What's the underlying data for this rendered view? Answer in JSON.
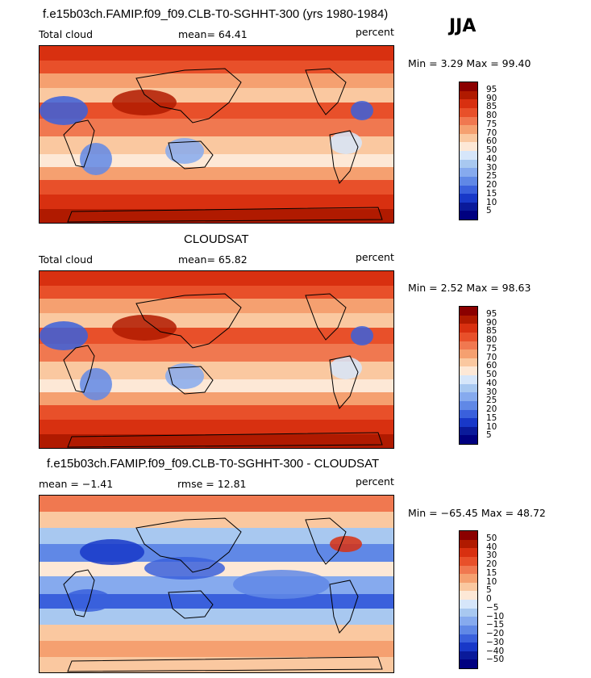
{
  "header": {
    "main_title": "f.e15b03ch.FAMIP.f09_f09.CLB-T0-SGHHT-300 (yrs 1980-1984)",
    "season": "JJA"
  },
  "panels": [
    {
      "variable": "Total cloud",
      "stat_text": "mean=  64.41",
      "units": "percent",
      "min_max": "Min =   3.29 Max =  99.40",
      "colorbar_labels": [
        "95",
        "90",
        "85",
        "80",
        "75",
        "70",
        "60",
        "50",
        "40",
        "30",
        "25",
        "20",
        "15",
        "10",
        "5"
      ],
      "colors": [
        "#8b0000",
        "#b01a00",
        "#d83010",
        "#e8502a",
        "#f07850",
        "#f5a070",
        "#fac8a0",
        "#fde8d6",
        "#d6e6fa",
        "#a8c8f0",
        "#86aaee",
        "#6088e6",
        "#3a60dc",
        "#1838c8",
        "#0a1a9a",
        "#000080"
      ]
    },
    {
      "title": "CLOUDSAT",
      "variable": "Total cloud",
      "stat_text": "mean=  65.82",
      "units": "percent",
      "min_max": "Min =   2.52 Max =  98.63",
      "colorbar_labels": [
        "95",
        "90",
        "85",
        "80",
        "75",
        "70",
        "60",
        "50",
        "40",
        "30",
        "25",
        "20",
        "15",
        "10",
        "5"
      ],
      "colors": [
        "#8b0000",
        "#b01a00",
        "#d83010",
        "#e8502a",
        "#f07850",
        "#f5a070",
        "#fac8a0",
        "#fde8d6",
        "#d6e6fa",
        "#a8c8f0",
        "#86aaee",
        "#6088e6",
        "#3a60dc",
        "#1838c8",
        "#0a1a9a",
        "#000080"
      ]
    },
    {
      "title": "f.e15b03ch.FAMIP.f09_f09.CLB-T0-SGHHT-300 - CLOUDSAT",
      "stat_text": "mean =  −1.41",
      "rmse_text": "rmse =  12.81",
      "units": "percent",
      "min_max": "Min = −65.45 Max =  48.72",
      "colorbar_labels": [
        "50",
        "40",
        "30",
        "20",
        "15",
        "10",
        "5",
        "0",
        "−5",
        "−10",
        "−15",
        "−20",
        "−30",
        "−40",
        "−50"
      ],
      "colors": [
        "#8b0000",
        "#b01a00",
        "#d83010",
        "#e8502a",
        "#f07850",
        "#f5a070",
        "#fac8a0",
        "#fde8d6",
        "#d6e6fa",
        "#a8c8f0",
        "#86aaee",
        "#6088e6",
        "#3a60dc",
        "#1838c8",
        "#0a1a9a",
        "#000080"
      ]
    }
  ]
}
